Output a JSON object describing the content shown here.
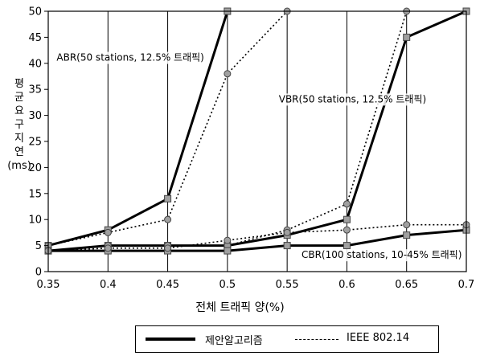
{
  "chart_data": {
    "type": "line",
    "xlabel": "전체 트래픽 양(%)",
    "ylabel": [
      "평",
      "균",
      "요",
      "구",
      "지",
      "연",
      "(ms)"
    ],
    "x": [
      0.35,
      0.4,
      0.45,
      0.5,
      0.55,
      0.6,
      0.65,
      0.7
    ],
    "x_ticks": [
      "0.35",
      "0.4",
      "0.45",
      "0.5",
      "0.55",
      "0.6",
      "0.65",
      "0.7"
    ],
    "y_ticks": [
      0,
      5,
      10,
      15,
      20,
      25,
      30,
      35,
      40,
      45,
      50
    ],
    "xlim": [
      0.35,
      0.7
    ],
    "ylim": [
      0,
      50
    ],
    "grid": "vertical",
    "series": [
      {
        "group": "ABR",
        "name": "제안알고리즘",
        "style": "solid",
        "x": [
          0.35,
          0.4,
          0.45,
          0.5
        ],
        "values": [
          5,
          8,
          14,
          50
        ]
      },
      {
        "group": "ABR",
        "name": "IEEE 802.14",
        "style": "dotted",
        "x": [
          0.35,
          0.4,
          0.45,
          0.5,
          0.55
        ],
        "values": [
          5,
          7.5,
          10,
          38,
          50
        ]
      },
      {
        "group": "VBR",
        "name": "제안알고리즘",
        "style": "solid",
        "x": [
          0.35,
          0.4,
          0.45,
          0.5,
          0.55,
          0.6,
          0.65,
          0.7
        ],
        "values": [
          4,
          5,
          5,
          5,
          7,
          10,
          45,
          50
        ]
      },
      {
        "group": "VBR",
        "name": "IEEE 802.14",
        "style": "dotted",
        "x": [
          0.35,
          0.4,
          0.45,
          0.5,
          0.55,
          0.6,
          0.65
        ],
        "values": [
          4,
          5,
          5,
          5,
          8,
          13,
          50
        ]
      },
      {
        "group": "CBR",
        "name": "제안알고리즘",
        "style": "solid",
        "x": [
          0.35,
          0.4,
          0.45,
          0.5,
          0.55,
          0.6,
          0.65,
          0.7
        ],
        "values": [
          4,
          4,
          4,
          4,
          5,
          5,
          7,
          8
        ]
      },
      {
        "group": "CBR",
        "name": "IEEE 802.14",
        "style": "dotted",
        "x": [
          0.35,
          0.4,
          0.45,
          0.5,
          0.55,
          0.6,
          0.65,
          0.7
        ],
        "values": [
          4,
          4.5,
          4.5,
          6,
          7.5,
          8,
          9,
          9
        ]
      }
    ],
    "annotations": [
      {
        "text": "ABR(50 stations, 12.5% 트래픽)",
        "x": 0.357,
        "y": 40.5
      },
      {
        "text": "VBR(50 stations, 12.5% 트래픽)",
        "x": 0.543,
        "y": 32.5
      },
      {
        "text": "CBR(100 stations, 10-45% 트래픽)",
        "x": 0.562,
        "y": 2.6
      }
    ],
    "legend": {
      "position": "bottom",
      "items": [
        {
          "label": "제안알고리즘",
          "style": "solid"
        },
        {
          "label": "IEEE 802.14",
          "style": "dashed"
        }
      ]
    },
    "colors": {
      "solid": "#000000",
      "dotted": "#000000",
      "marker_fill": "#a0a0a0"
    }
  }
}
